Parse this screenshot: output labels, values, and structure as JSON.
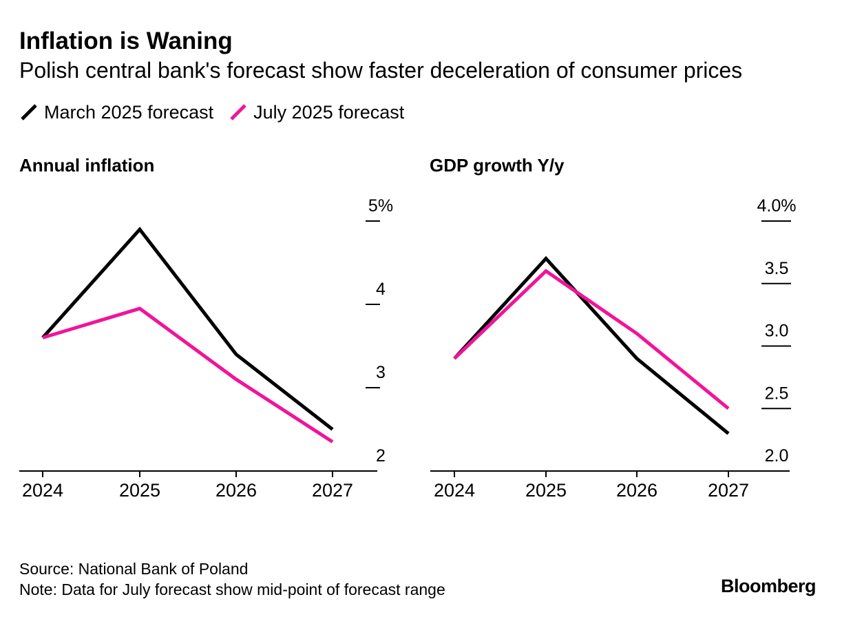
{
  "title": "Inflation is Waning",
  "subtitle": "Polish central bank's forecast show faster deceleration of consumer prices",
  "colors": {
    "march": "#000000",
    "july": "#f0149a"
  },
  "legend": [
    {
      "label": "March 2025 forecast",
      "color": "#000000"
    },
    {
      "label": "July 2025 forecast",
      "color": "#f0149a"
    }
  ],
  "chart_data": [
    {
      "type": "line",
      "title": "Annual inflation",
      "x": [
        "2024",
        "2025",
        "2026",
        "2027"
      ],
      "ylim": [
        2,
        5
      ],
      "yticks": [
        2,
        3,
        4,
        5
      ],
      "ytick_labels": [
        "2",
        "3",
        "4",
        "5%"
      ],
      "series": [
        {
          "name": "March 2025 forecast",
          "color": "#000000",
          "values": [
            3.6,
            4.9,
            3.4,
            2.5
          ]
        },
        {
          "name": "July 2025 forecast",
          "color": "#f0149a",
          "values": [
            3.6,
            3.95,
            3.1,
            2.35
          ]
        }
      ]
    },
    {
      "type": "line",
      "title": "GDP growth Y/y",
      "x": [
        "2024",
        "2025",
        "2026",
        "2027"
      ],
      "ylim": [
        2.0,
        4.0
      ],
      "yticks": [
        2.0,
        2.5,
        3.0,
        3.5,
        4.0
      ],
      "ytick_labels": [
        "2.0",
        "2.5",
        "3.0",
        "3.5",
        "4.0%"
      ],
      "series": [
        {
          "name": "March 2025 forecast",
          "color": "#000000",
          "values": [
            2.9,
            3.7,
            2.9,
            2.3
          ]
        },
        {
          "name": "July 2025 forecast",
          "color": "#f0149a",
          "values": [
            2.9,
            3.6,
            3.1,
            2.5
          ]
        }
      ]
    }
  ],
  "footer": {
    "source": "Source: National Bank of Poland",
    "note": "Note: Data for July forecast show mid-point of forecast range",
    "brand": "Bloomberg"
  }
}
